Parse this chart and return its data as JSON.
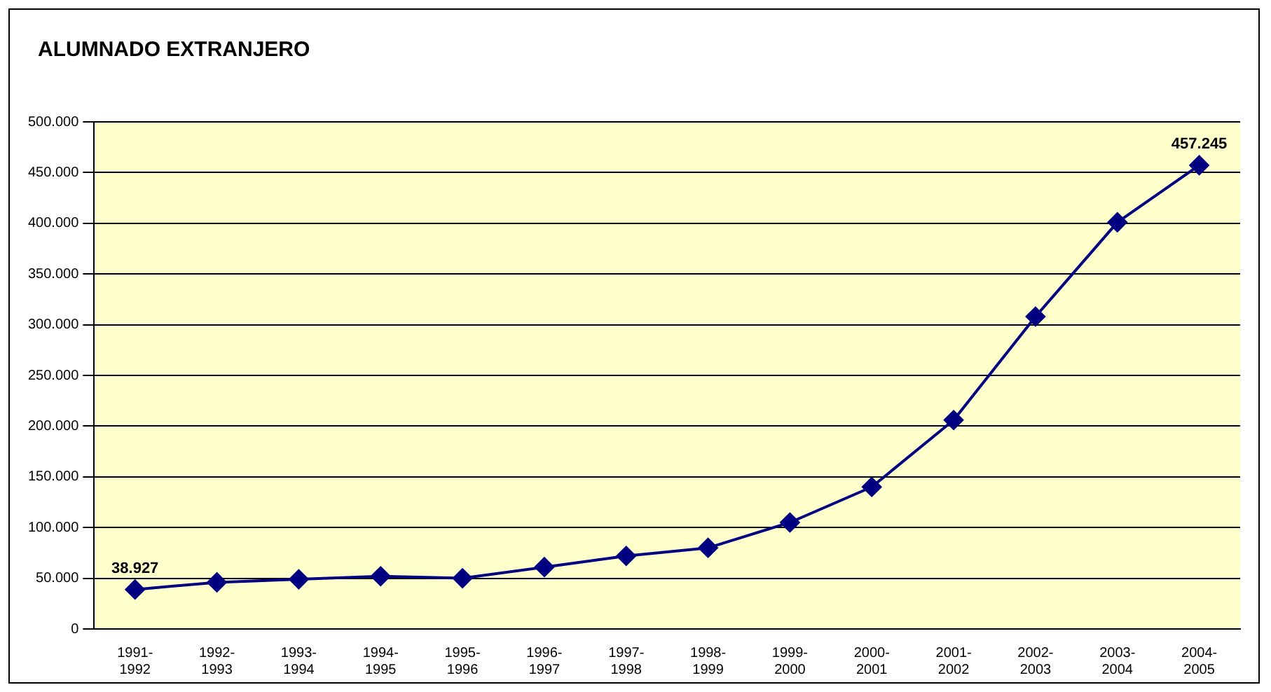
{
  "chart_data": {
    "type": "line",
    "title": "ALUMNADO EXTRANJERO",
    "categories": [
      "1991-\n1992",
      "1992-\n1993",
      "1993-\n1994",
      "1994-\n1995",
      "1995-\n1996",
      "1996-\n1997",
      "1997-\n1998",
      "1998-\n1999",
      "1999-\n2000",
      "2000-\n2001",
      "2001-\n2002",
      "2002-\n2003",
      "2003-\n2004",
      "2004-\n2005"
    ],
    "series": [
      {
        "color": "#000080",
        "values": [
          38927,
          46000,
          49000,
          52000,
          50000,
          61000,
          72000,
          80000,
          105000,
          140000,
          206000,
          308000,
          401000,
          457245
        ],
        "value_labels": [
          "38.927",
          null,
          null,
          null,
          null,
          null,
          null,
          null,
          null,
          null,
          null,
          null,
          null,
          "457.245"
        ]
      }
    ],
    "ylim": [
      0,
      500000
    ],
    "yticks": [
      0,
      {
        "value": 50000,
        "label": "50.000"
      },
      {
        "value": 100000,
        "label": "100.000"
      },
      {
        "value": 150000,
        "label": "150.000"
      },
      {
        "value": 200000,
        "label": "200.000"
      },
      {
        "value": 250000,
        "label": "250.000"
      },
      {
        "value": 300000,
        "label": "300.000"
      },
      {
        "value": 350000,
        "label": "350.000"
      },
      {
        "value": 400000,
        "label": "400.000"
      },
      {
        "value": 450000,
        "label": "450.000"
      },
      {
        "value": 500000,
        "label": "500.000"
      }
    ],
    "grid": "y",
    "legend": false,
    "marker": "diamond",
    "line_style": "solid"
  }
}
